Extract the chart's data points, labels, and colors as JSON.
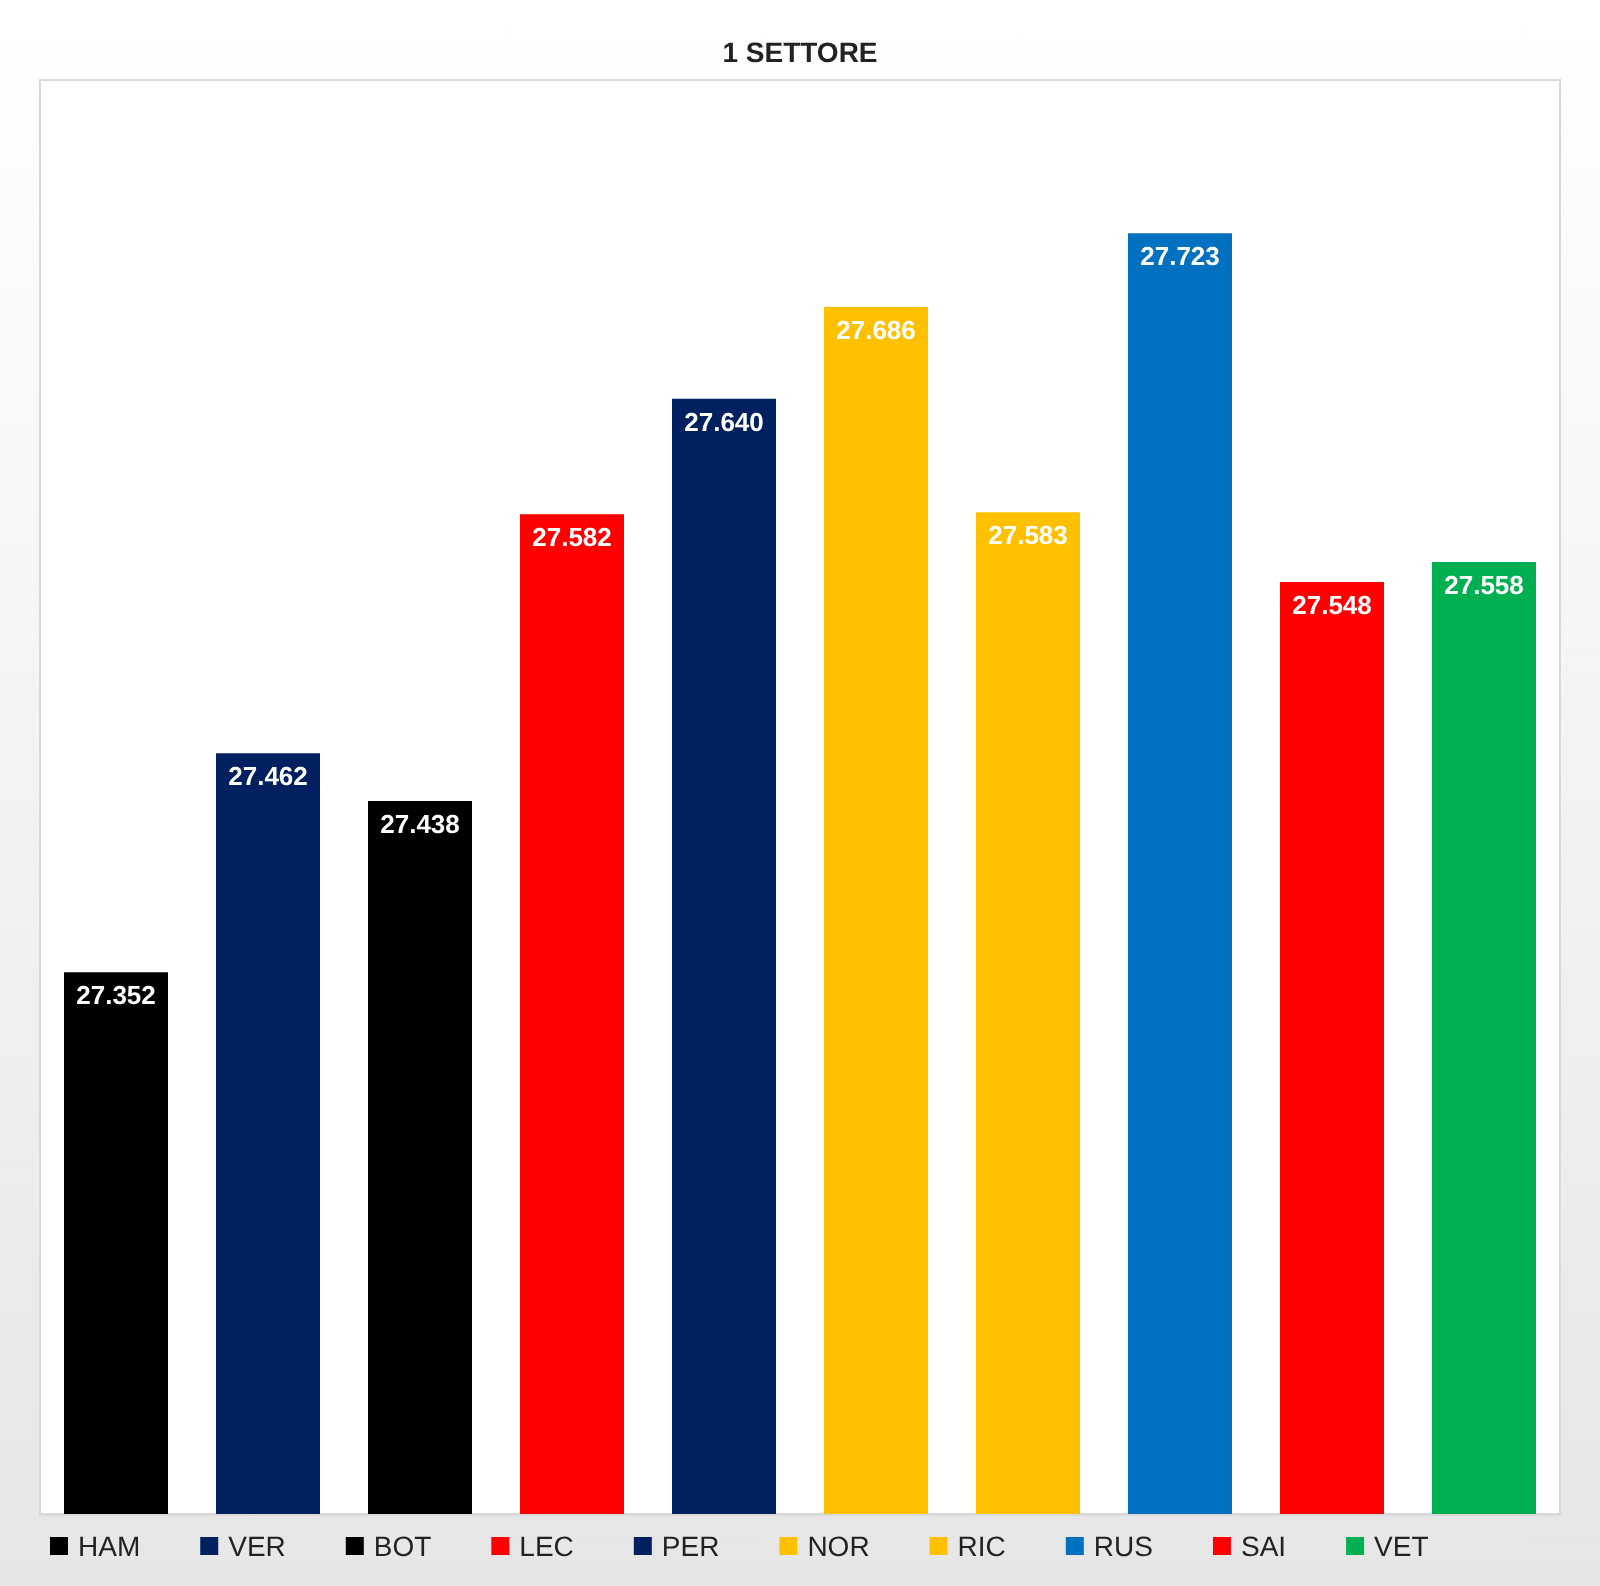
{
  "chart_data": {
    "type": "bar",
    "title": "1 SETTORE",
    "categories": [
      null,
      null,
      null,
      null,
      null,
      null,
      null,
      null,
      null,
      null
    ],
    "stacked": true,
    "series": [
      {
        "name": "HAM",
        "color": "#000000",
        "values": [
          27.352,
          null,
          null,
          null,
          null,
          null,
          null,
          null,
          null,
          null
        ],
        "value_labels": [
          "27.352",
          null,
          null,
          null,
          null,
          null,
          null,
          null,
          null,
          null
        ]
      },
      {
        "name": "VER",
        "color": "#002060",
        "values": [
          null,
          27.462,
          null,
          null,
          null,
          null,
          null,
          null,
          null,
          null
        ],
        "value_labels": [
          null,
          "27.462",
          null,
          null,
          null,
          null,
          null,
          null,
          null,
          null
        ]
      },
      {
        "name": "BOT",
        "color": "#000000",
        "values": [
          null,
          null,
          27.438,
          null,
          null,
          null,
          null,
          null,
          null,
          null
        ],
        "value_labels": [
          null,
          null,
          "27.438",
          null,
          null,
          null,
          null,
          null,
          null,
          null
        ]
      },
      {
        "name": "LEC",
        "color": "#ff0000",
        "values": [
          null,
          null,
          null,
          27.582,
          null,
          null,
          null,
          null,
          null,
          null
        ],
        "value_labels": [
          null,
          null,
          null,
          "27.582",
          null,
          null,
          null,
          null,
          null,
          null
        ]
      },
      {
        "name": "PER",
        "color": "#002060",
        "values": [
          null,
          null,
          null,
          null,
          27.64,
          null,
          null,
          null,
          null,
          null
        ],
        "value_labels": [
          null,
          null,
          null,
          null,
          "27.640",
          null,
          null,
          null,
          null,
          null
        ]
      },
      {
        "name": "NOR",
        "color": "#ffc000",
        "values": [
          null,
          null,
          null,
          null,
          null,
          27.686,
          null,
          null,
          null,
          null
        ],
        "value_labels": [
          null,
          null,
          null,
          null,
          null,
          "27.686",
          null,
          null,
          null,
          null
        ]
      },
      {
        "name": "RIC",
        "color": "#ffc000",
        "values": [
          null,
          null,
          null,
          null,
          null,
          null,
          27.583,
          null,
          null,
          null
        ],
        "value_labels": [
          null,
          null,
          null,
          null,
          null,
          null,
          "27.583",
          null,
          null,
          null
        ]
      },
      {
        "name": "RUS",
        "color": "#0070c0",
        "values": [
          null,
          null,
          null,
          null,
          null,
          null,
          null,
          27.723,
          null,
          null
        ],
        "value_labels": [
          null,
          null,
          null,
          null,
          null,
          null,
          null,
          "27.723",
          null,
          null
        ]
      },
      {
        "name": "SAI",
        "color": "#ff0000",
        "values": [
          null,
          null,
          null,
          null,
          null,
          null,
          null,
          null,
          27.548,
          null
        ],
        "value_labels": [
          null,
          null,
          null,
          null,
          null,
          null,
          null,
          null,
          "27.548",
          null
        ]
      },
      {
        "name": "VET",
        "color": "#00b050",
        "values": [
          null,
          null,
          null,
          null,
          null,
          null,
          null,
          null,
          null,
          27.558
        ],
        "value_labels": [
          null,
          null,
          null,
          null,
          null,
          null,
          null,
          null,
          null,
          "27.558"
        ]
      }
    ],
    "ylim": [
      27.08,
      27.8
    ],
    "legend": "bottom",
    "tick_labels": false,
    "grid": false
  }
}
